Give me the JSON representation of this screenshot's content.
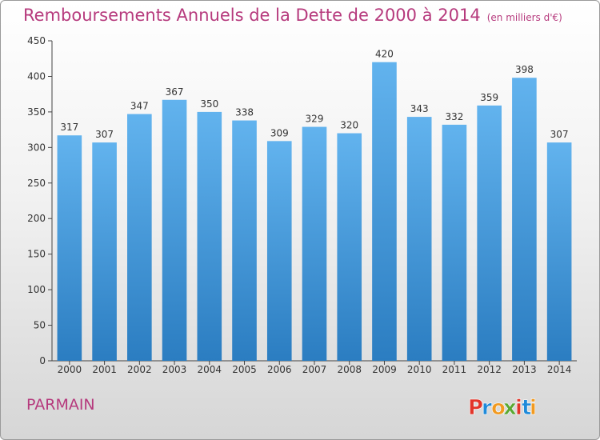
{
  "header": {
    "title": "Remboursements Annuels de la Dette de 2000 à 2014",
    "unit": "(en milliers d'€)"
  },
  "footer": {
    "commune": "PARMAIN",
    "brand": {
      "letters": [
        "P",
        "r",
        "o",
        "x",
        "i",
        "t",
        "i"
      ]
    }
  },
  "colors": {
    "title": "#b63a7d",
    "bar_top": "#62b3ee",
    "bar_bottom": "#2b7dc1",
    "logo_letters": [
      "#e2352a",
      "#1f8ad9",
      "#f19a21",
      "#5aa832",
      "#e2352a",
      "#1f8ad9",
      "#f19a21"
    ]
  },
  "chart_data": {
    "type": "bar",
    "categories": [
      "2000",
      "2001",
      "2002",
      "2003",
      "2004",
      "2005",
      "2006",
      "2007",
      "2008",
      "2009",
      "2010",
      "2011",
      "2012",
      "2013",
      "2014"
    ],
    "values": [
      317,
      307,
      347,
      367,
      350,
      338,
      309,
      329,
      320,
      420,
      343,
      332,
      359,
      398,
      307
    ],
    "ylim": [
      0,
      450
    ],
    "yticks": [
      0,
      50,
      100,
      150,
      200,
      250,
      300,
      350,
      400,
      450
    ],
    "grid": false,
    "data_labels": true
  }
}
